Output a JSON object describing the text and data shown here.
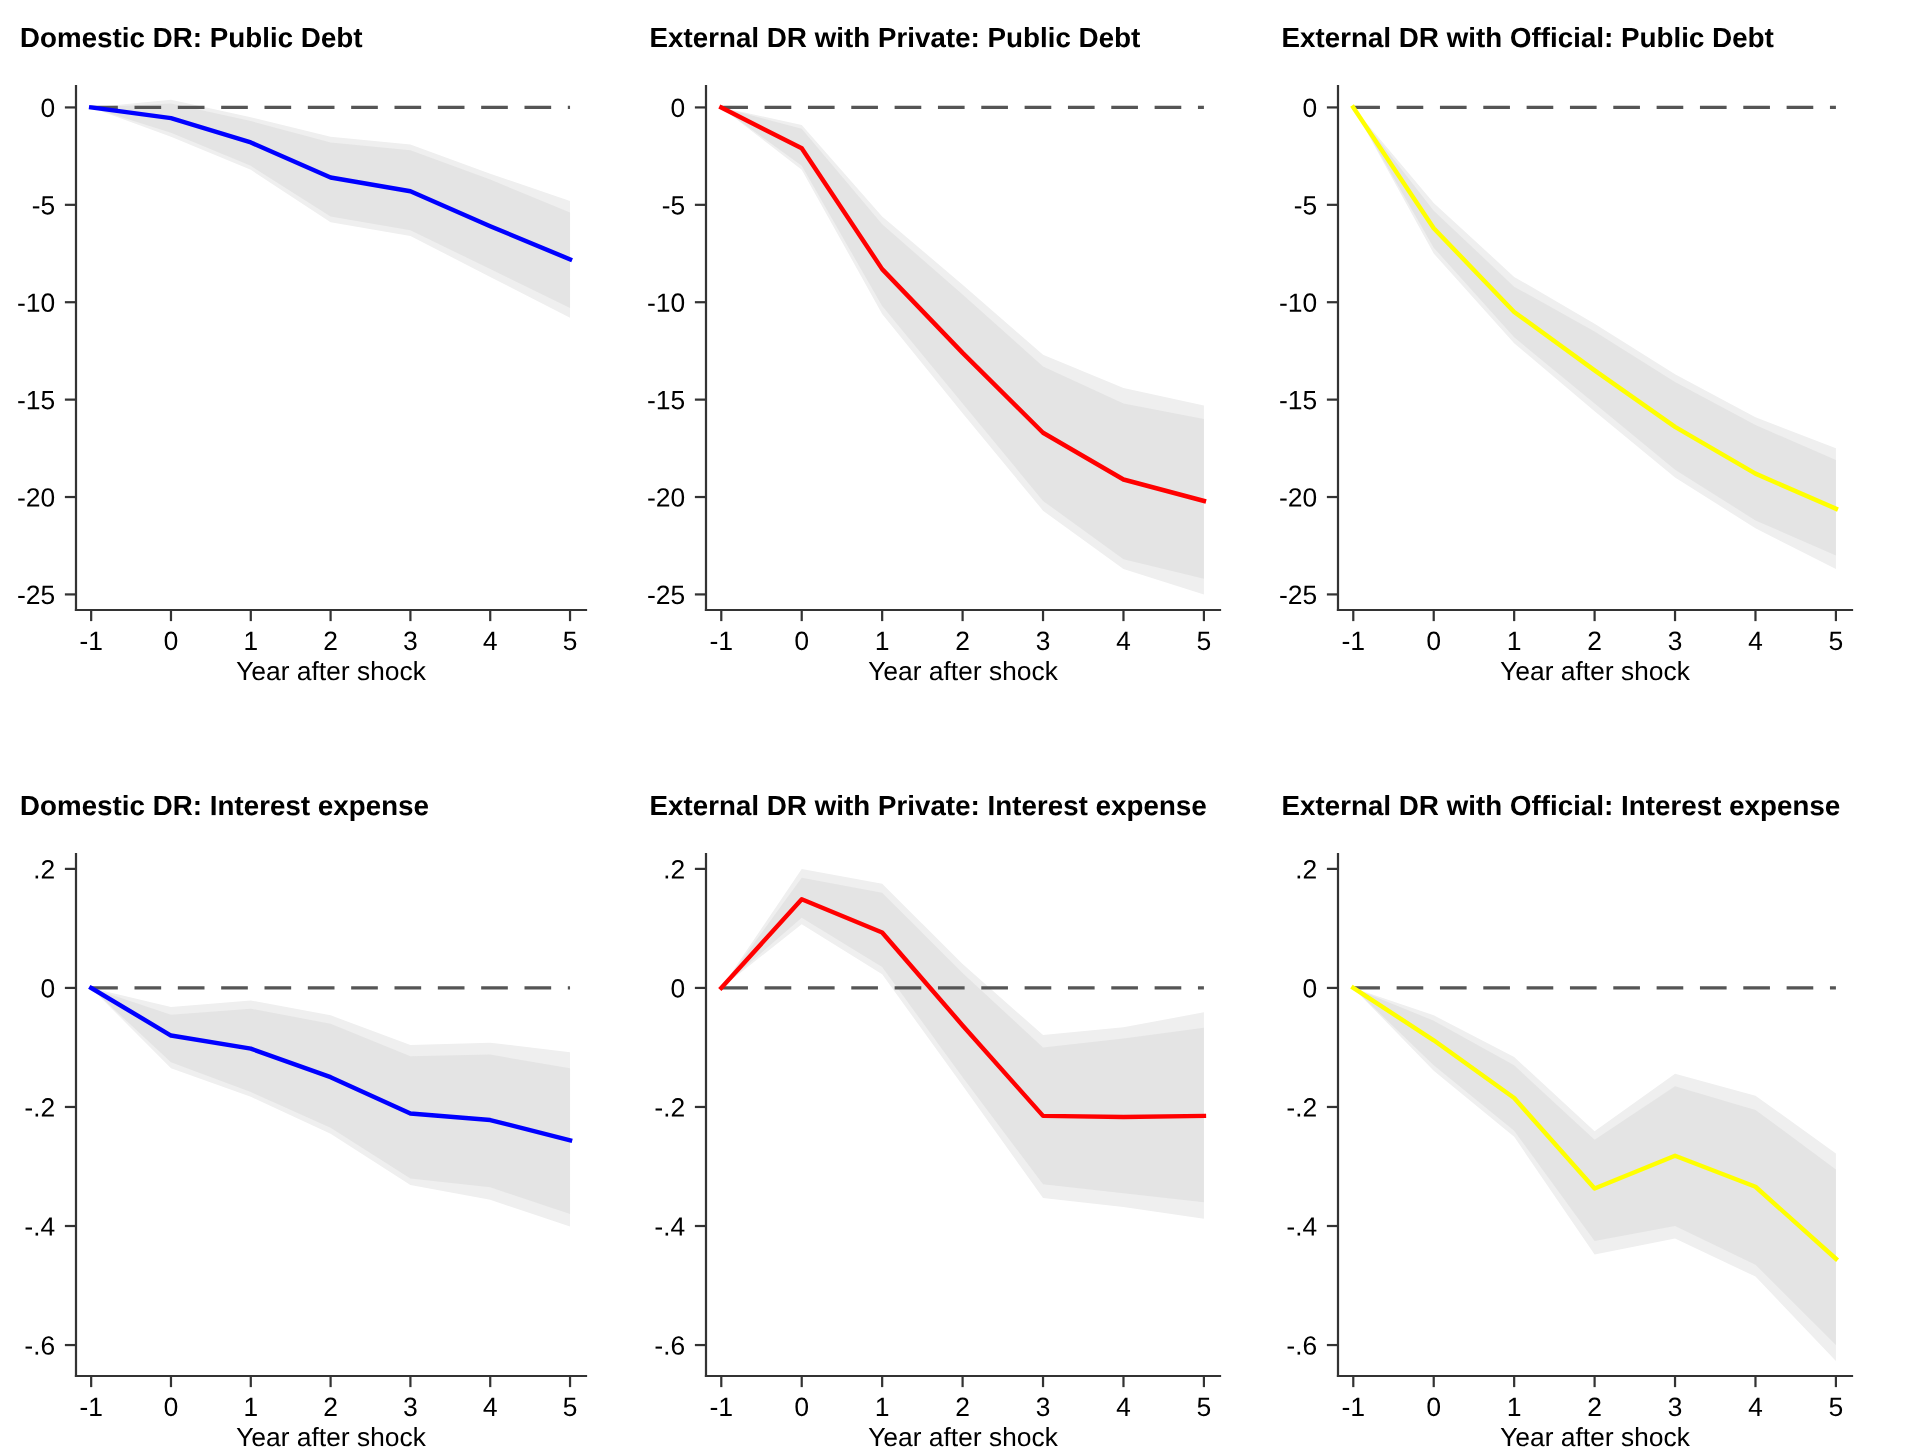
{
  "chart_data": [
    {
      "type": "line",
      "title": "Domestic DR: Public Debt",
      "xlabel": "Year after shock",
      "x": [
        -1,
        0,
        1,
        2,
        3,
        4,
        5
      ],
      "xlim": [
        -1.19,
        5.2
      ],
      "xticks": [
        -1,
        0,
        1,
        2,
        3,
        4,
        5
      ],
      "ylim": [
        -25.8,
        1.1
      ],
      "yticks": [
        0,
        -5,
        -10,
        -15,
        -20,
        -25
      ],
      "grid": false,
      "legend": false,
      "ref_lines": [
        {
          "axis": "y",
          "value": 0,
          "color": "#555555",
          "line_style": "dashed"
        }
      ],
      "series": [
        {
          "color": "#efefef",
          "values": [
            null,
            null,
            null,
            null,
            null,
            null,
            null
          ],
          "lower": [
            0,
            -1.5,
            -3.2,
            -5.9,
            -6.6,
            -8.7,
            -10.8
          ],
          "upper": [
            0,
            0.4,
            -0.5,
            -1.5,
            -1.9,
            -3.4,
            -4.8
          ]
        },
        {
          "color": "#0000ff",
          "values": [
            0,
            -0.55,
            -1.8,
            -3.6,
            -4.3,
            -6.1,
            -7.8
          ],
          "lower": [
            0,
            -1.3,
            -3.0,
            -5.6,
            -6.3,
            -8.3,
            -10.3
          ],
          "upper": [
            0,
            0.2,
            -0.7,
            -1.8,
            -2.2,
            -3.7,
            -5.4
          ]
        }
      ]
    },
    {
      "type": "line",
      "title": "External DR with Private: Public Debt",
      "xlabel": "Year after shock",
      "x": [
        -1,
        0,
        1,
        2,
        3,
        4,
        5
      ],
      "xlim": [
        -1.19,
        5.2
      ],
      "xticks": [
        -1,
        0,
        1,
        2,
        3,
        4,
        5
      ],
      "ylim": [
        -25.8,
        1.1
      ],
      "yticks": [
        0,
        -5,
        -10,
        -15,
        -20,
        -25
      ],
      "grid": false,
      "legend": false,
      "ref_lines": [
        {
          "axis": "y",
          "value": 0,
          "color": "#555555",
          "line_style": "dashed"
        }
      ],
      "series": [
        {
          "color": "#efefef",
          "values": [
            null,
            null,
            null,
            null,
            null,
            null,
            null
          ],
          "lower": [
            0,
            -3.2,
            -10.6,
            -15.7,
            -20.7,
            -23.7,
            -25.0
          ],
          "upper": [
            0,
            -0.9,
            -5.6,
            -9.1,
            -12.7,
            -14.4,
            -15.3
          ]
        },
        {
          "color": "#ff0000",
          "values": [
            0,
            -2.1,
            -8.3,
            -12.6,
            -16.7,
            -19.1,
            -20.2
          ],
          "lower": [
            0,
            -3.0,
            -10.2,
            -15.2,
            -20.2,
            -23.2,
            -24.2
          ],
          "upper": [
            0,
            -1.1,
            -6.0,
            -9.6,
            -13.3,
            -15.2,
            -16.0
          ]
        }
      ]
    },
    {
      "type": "line",
      "title": "External DR with Official: Public Debt",
      "xlabel": "Year after shock",
      "x": [
        -1,
        0,
        1,
        2,
        3,
        4,
        5
      ],
      "xlim": [
        -1.19,
        5.2
      ],
      "xticks": [
        -1,
        0,
        1,
        2,
        3,
        4,
        5
      ],
      "ylim": [
        -25.8,
        1.1
      ],
      "yticks": [
        0,
        -5,
        -10,
        -15,
        -20,
        -25
      ],
      "grid": false,
      "legend": false,
      "ref_lines": [
        {
          "axis": "y",
          "value": 0,
          "color": "#555555",
          "line_style": "dashed"
        }
      ],
      "series": [
        {
          "color": "#efefef",
          "values": [
            null,
            null,
            null,
            null,
            null,
            null,
            null
          ],
          "lower": [
            0,
            -7.5,
            -12.1,
            -15.6,
            -19.0,
            -21.6,
            -23.7
          ],
          "upper": [
            0,
            -4.9,
            -8.7,
            -11.1,
            -13.7,
            -15.9,
            -17.5
          ]
        },
        {
          "color": "#ffff00",
          "values": [
            0,
            -6.2,
            -10.5,
            -13.5,
            -16.4,
            -18.8,
            -20.6
          ],
          "lower": [
            0,
            -7.2,
            -11.8,
            -15.2,
            -18.6,
            -21.2,
            -23.0
          ],
          "upper": [
            0,
            -5.3,
            -9.2,
            -11.5,
            -14.1,
            -16.3,
            -18.1
          ]
        }
      ]
    },
    {
      "type": "line",
      "title": "Domestic DR: Interest expense",
      "xlabel": "Year after shock",
      "x": [
        -1,
        0,
        1,
        2,
        3,
        4,
        5
      ],
      "xlim": [
        -1.19,
        5.2
      ],
      "xticks": [
        -1,
        0,
        1,
        2,
        3,
        4,
        5
      ],
      "ylim": [
        -0.652,
        0.225
      ],
      "yticks": [
        {
          "value": 0.2,
          "label": ".2"
        },
        0,
        {
          "value": -0.2,
          "label": "-.2"
        },
        {
          "value": -0.4,
          "label": "-.4"
        },
        {
          "value": -0.6,
          "label": "-.6"
        }
      ],
      "grid": false,
      "legend": false,
      "ref_lines": [
        {
          "axis": "y",
          "value": 0,
          "color": "#555555",
          "line_style": "dashed"
        }
      ],
      "series": [
        {
          "color": "#efefef",
          "values": [
            null,
            null,
            null,
            null,
            null,
            null,
            null
          ],
          "lower": [
            0,
            -0.135,
            -0.183,
            -0.245,
            -0.331,
            -0.356,
            -0.401
          ],
          "upper": [
            0,
            -0.032,
            -0.021,
            -0.046,
            -0.096,
            -0.092,
            -0.108
          ]
        },
        {
          "color": "#0000ff",
          "values": [
            0,
            -0.08,
            -0.102,
            -0.15,
            -0.211,
            -0.222,
            -0.256
          ],
          "lower": [
            0,
            -0.125,
            -0.175,
            -0.235,
            -0.32,
            -0.335,
            -0.38
          ],
          "upper": [
            0,
            -0.045,
            -0.035,
            -0.06,
            -0.115,
            -0.112,
            -0.135
          ]
        }
      ]
    },
    {
      "type": "line",
      "title": "External DR with Private: Interest expense",
      "xlabel": "Year after shock",
      "x": [
        -1,
        0,
        1,
        2,
        3,
        4,
        5
      ],
      "xlim": [
        -1.19,
        5.2
      ],
      "xticks": [
        -1,
        0,
        1,
        2,
        3,
        4,
        5
      ],
      "ylim": [
        -0.652,
        0.225
      ],
      "yticks": [
        {
          "value": 0.2,
          "label": ".2"
        },
        0,
        {
          "value": -0.2,
          "label": "-.2"
        },
        {
          "value": -0.4,
          "label": "-.4"
        },
        {
          "value": -0.6,
          "label": "-.6"
        }
      ],
      "grid": false,
      "legend": false,
      "ref_lines": [
        {
          "axis": "y",
          "value": 0,
          "color": "#555555",
          "line_style": "dashed"
        }
      ],
      "series": [
        {
          "color": "#efefef",
          "values": [
            null,
            null,
            null,
            null,
            null,
            null,
            null
          ],
          "lower": [
            0,
            0.107,
            0.023,
            -0.164,
            -0.353,
            -0.368,
            -0.388
          ],
          "upper": [
            0,
            0.2,
            0.175,
            0.04,
            -0.079,
            -0.066,
            -0.041
          ]
        },
        {
          "color": "#ff0000",
          "values": [
            0,
            0.149,
            0.093,
            -0.063,
            -0.215,
            -0.217,
            -0.215
          ],
          "lower": [
            0,
            0.118,
            0.035,
            -0.15,
            -0.33,
            -0.345,
            -0.36
          ],
          "upper": [
            0,
            0.185,
            0.16,
            0.025,
            -0.1,
            -0.085,
            -0.067
          ]
        }
      ]
    },
    {
      "type": "line",
      "title": "External DR with Official: Interest expense",
      "xlabel": "Year after shock",
      "x": [
        -1,
        0,
        1,
        2,
        3,
        4,
        5
      ],
      "xlim": [
        -1.19,
        5.2
      ],
      "xticks": [
        -1,
        0,
        1,
        2,
        3,
        4,
        5
      ],
      "ylim": [
        -0.652,
        0.225
      ],
      "yticks": [
        {
          "value": 0.2,
          "label": ".2"
        },
        0,
        {
          "value": -0.2,
          "label": "-.2"
        },
        {
          "value": -0.4,
          "label": "-.4"
        },
        {
          "value": -0.6,
          "label": "-.6"
        }
      ],
      "grid": false,
      "legend": false,
      "ref_lines": [
        {
          "axis": "y",
          "value": 0,
          "color": "#555555",
          "line_style": "dashed"
        }
      ],
      "series": [
        {
          "color": "#efefef",
          "values": [
            null,
            null,
            null,
            null,
            null,
            null,
            null
          ],
          "lower": [
            0,
            -0.139,
            -0.25,
            -0.448,
            -0.421,
            -0.485,
            -0.627
          ],
          "upper": [
            0,
            -0.046,
            -0.116,
            -0.241,
            -0.144,
            -0.181,
            -0.278
          ]
        },
        {
          "color": "#ffff00",
          "values": [
            0,
            -0.088,
            -0.185,
            -0.337,
            -0.282,
            -0.334,
            -0.455
          ],
          "lower": [
            0,
            -0.13,
            -0.24,
            -0.425,
            -0.4,
            -0.465,
            -0.6
          ],
          "upper": [
            0,
            -0.055,
            -0.13,
            -0.255,
            -0.165,
            -0.205,
            -0.305
          ]
        }
      ]
    }
  ]
}
